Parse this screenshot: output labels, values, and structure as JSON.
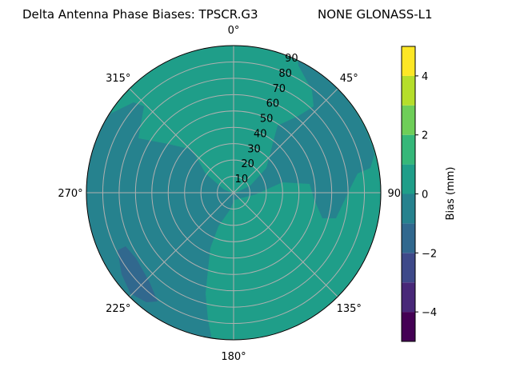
{
  "chart_data": {
    "type": "heatmap",
    "projection": "polar",
    "title_left": "Delta Antenna Phase Biases: TPSCR.G3",
    "title_right": "NONE GLONASS-L1",
    "theta_direction": "clockwise",
    "theta_zero": "top",
    "theta_ticks": [
      "0°",
      "45°",
      "90°",
      "135°",
      "180°",
      "225°",
      "270°",
      "315°"
    ],
    "theta_tick_values": [
      0,
      45,
      90,
      135,
      180,
      225,
      270,
      315
    ],
    "radial_ticks": [
      "10",
      "20",
      "30",
      "40",
      "50",
      "60",
      "70",
      "80",
      "90"
    ],
    "radial_tick_values": [
      10,
      20,
      30,
      40,
      50,
      60,
      70,
      80,
      90
    ],
    "rlim": [
      0,
      90
    ],
    "grid": true,
    "colorbar": {
      "label": "Bias (mm)",
      "range": [
        -5,
        5
      ],
      "levels": [
        -5,
        -4,
        -3,
        -2,
        -1,
        0,
        1,
        2,
        3,
        4,
        5
      ],
      "colors": [
        "#440154",
        "#482878",
        "#3e4989",
        "#31688e",
        "#26828e",
        "#1f9e89",
        "#35b779",
        "#6ece58",
        "#b5de2b",
        "#fde725"
      ],
      "ticks": [
        "−4",
        "−2",
        "0",
        "2",
        "4"
      ],
      "tick_values": [
        -4,
        -2,
        0,
        2,
        4
      ]
    },
    "regions": [
      {
        "level": [
          0,
          1
        ],
        "description_area": "north, southeast and east"
      },
      {
        "level": [
          -1,
          0
        ],
        "description_area": "west, southwest and northeast band"
      },
      {
        "level": [
          -2,
          -1
        ],
        "description_area": "small patch near 235°, zenith 70–85"
      }
    ]
  }
}
